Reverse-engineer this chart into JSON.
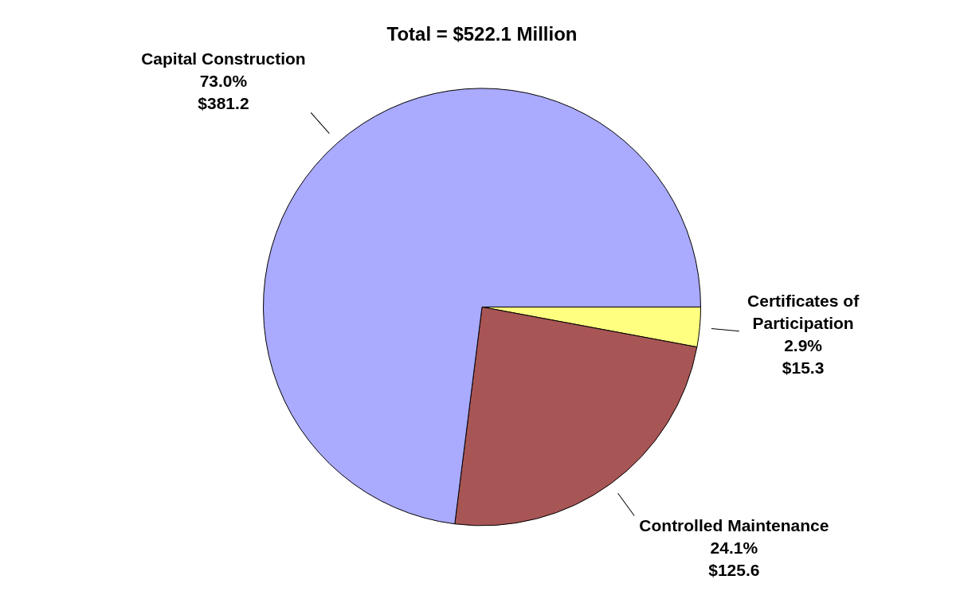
{
  "chart_data": {
    "type": "pie",
    "title": "Total = $522.1 Million",
    "categories": [
      "Certificates of Participation",
      "Controlled Maintenance",
      "Capital Construction"
    ],
    "values": [
      15.3,
      125.6,
      381.2
    ],
    "colors": [
      "#ffff80",
      "#a85555",
      "#aaaaff"
    ],
    "value_labels": [
      "2.9%\n$15.3",
      "24.1%\n$125.6",
      "73.0%\n$381.2"
    ],
    "legend": false
  }
}
